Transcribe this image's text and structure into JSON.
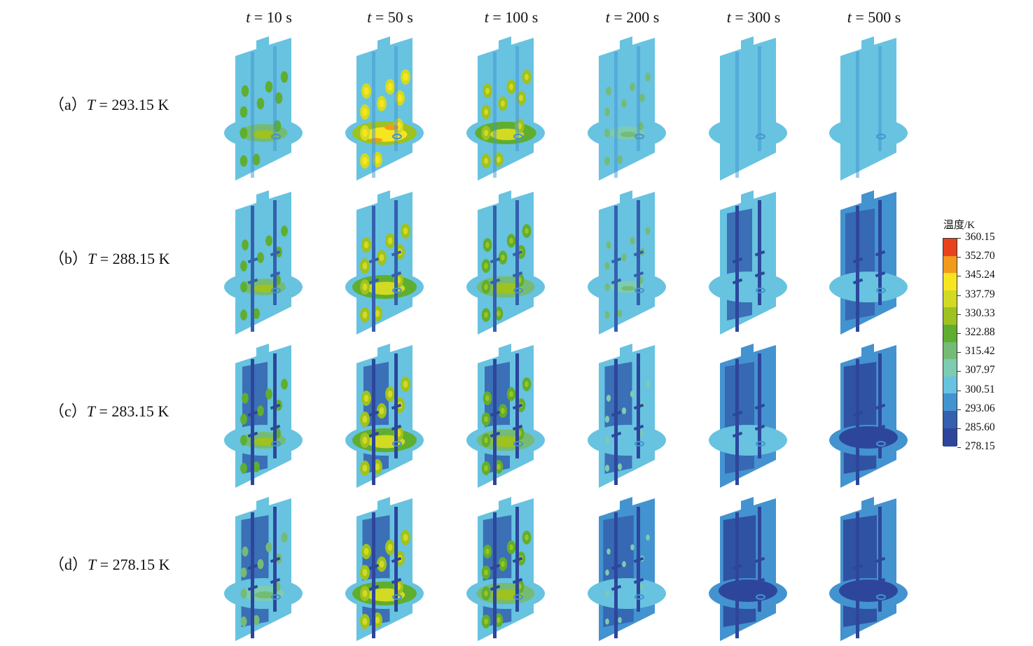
{
  "columns": [
    {
      "label": "t = 10 s",
      "var": "t",
      "rest": " = 10 s"
    },
    {
      "label": "t = 50 s",
      "var": "t",
      "rest": " = 50 s"
    },
    {
      "label": "t = 100 s",
      "var": "t",
      "rest": " = 100 s"
    },
    {
      "label": "t = 200 s",
      "var": "t",
      "rest": " = 200 s"
    },
    {
      "label": "t = 300 s",
      "var": "t",
      "rest": " = 300 s"
    },
    {
      "label": "t = 500 s",
      "var": "t",
      "rest": " = 500 s"
    }
  ],
  "rows": [
    {
      "prefix": "（a）",
      "var": "T",
      "rest": " = 293.15 K"
    },
    {
      "prefix": "（b）",
      "var": "T",
      "rest": " = 288.15 K"
    },
    {
      "prefix": "（c）",
      "var": "T",
      "rest": " = 283.15 K"
    },
    {
      "prefix": "（d）",
      "var": "T",
      "rest": " = 278.15 K"
    }
  ],
  "legend": {
    "title": "温度/K",
    "values": [
      "360.15",
      "352.70",
      "345.24",
      "337.79",
      "330.33",
      "322.88",
      "315.42",
      "307.97",
      "300.51",
      "293.06",
      "285.60",
      "278.15"
    ],
    "colors": [
      "#e8421e",
      "#f29a1c",
      "#f7e51f",
      "#d2da23",
      "#9ec21f",
      "#5fae2f",
      "#74bb76",
      "#7dcbb0",
      "#67c3e0",
      "#4393d0",
      "#3460ae",
      "#2d469b"
    ]
  },
  "palette": {
    "background_a": "#67c3e0",
    "background_b": "#67c3e0",
    "background_c_dark": "#3f8ccd",
    "cold_core": "#2f4ea3"
  }
}
